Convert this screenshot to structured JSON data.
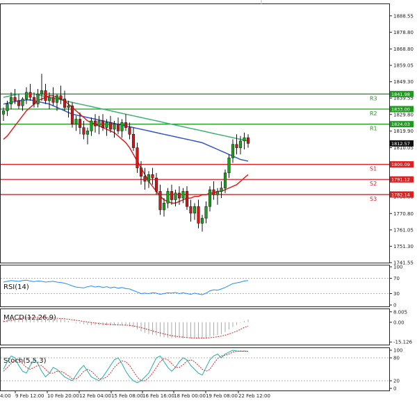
{
  "chart_data": {
    "type": "candlestick",
    "instrument": "Gold",
    "main": {
      "y_ticks": [
        1888.55,
        1878.8,
        1868.8,
        1859.05,
        1849.3,
        1839.55,
        1829.8,
        1819.9,
        1810.05,
        1800.3,
        1790.55,
        1780.8,
        1770.8,
        1761.05,
        1751.3,
        1741.55
      ],
      "ylim": [
        1741.55,
        1895.5
      ],
      "current_price": "1812.57",
      "levels": [
        {
          "name": "R3",
          "value": 1841.98,
          "label": "1841.98",
          "color": "#1f9a1f"
        },
        {
          "name": "R2",
          "value": 1833.0,
          "label": "1833.00",
          "color": "#1f9a1f"
        },
        {
          "name": "R1",
          "value": 1824.03,
          "label": "1824.03",
          "color": "#1f9a1f"
        },
        {
          "name": "S1",
          "value": 1800.09,
          "label": "1800.09",
          "color": "#e02020"
        },
        {
          "name": "S2",
          "value": 1791.12,
          "label": "1791.12",
          "color": "#e02020"
        },
        {
          "name": "S3",
          "value": 1782.14,
          "label": "1782.14",
          "color": "#e02020"
        }
      ],
      "candles": [
        [
          1830,
          1834,
          1826,
          1832
        ],
        [
          1832,
          1838,
          1829,
          1836
        ],
        [
          1836,
          1843,
          1833,
          1840
        ],
        [
          1840,
          1845,
          1836,
          1838
        ],
        [
          1838,
          1842,
          1833,
          1835
        ],
        [
          1835,
          1840,
          1832,
          1839
        ],
        [
          1839,
          1846,
          1836,
          1843
        ],
        [
          1843,
          1848,
          1838,
          1840
        ],
        [
          1840,
          1843,
          1834,
          1836
        ],
        [
          1836,
          1845,
          1834,
          1842
        ],
        [
          1842,
          1854,
          1838,
          1844
        ],
        [
          1844,
          1848,
          1836,
          1838
        ],
        [
          1838,
          1843,
          1833,
          1840
        ],
        [
          1840,
          1846,
          1835,
          1837
        ],
        [
          1837,
          1842,
          1832,
          1841
        ],
        [
          1841,
          1847,
          1836,
          1839
        ],
        [
          1839,
          1844,
          1832,
          1834
        ],
        [
          1834,
          1838,
          1828,
          1835
        ],
        [
          1835,
          1837,
          1822,
          1824
        ],
        [
          1824,
          1829,
          1820,
          1827
        ],
        [
          1827,
          1831,
          1818,
          1822
        ],
        [
          1822,
          1826,
          1815,
          1818
        ],
        [
          1818,
          1822,
          1812,
          1820
        ],
        [
          1820,
          1828,
          1817,
          1826
        ],
        [
          1826,
          1830,
          1819,
          1823
        ],
        [
          1823,
          1829,
          1818,
          1826
        ],
        [
          1826,
          1830,
          1820,
          1822
        ],
        [
          1822,
          1827,
          1817,
          1825
        ],
        [
          1825,
          1829,
          1819,
          1821
        ],
        [
          1821,
          1826,
          1816,
          1824
        ],
        [
          1824,
          1828,
          1818,
          1820
        ],
        [
          1820,
          1827,
          1816,
          1825
        ],
        [
          1825,
          1830,
          1820,
          1822
        ],
        [
          1822,
          1825,
          1815,
          1818
        ],
        [
          1818,
          1822,
          1808,
          1810
        ],
        [
          1810,
          1813,
          1795,
          1798
        ],
        [
          1798,
          1802,
          1788,
          1793
        ],
        [
          1793,
          1798,
          1785,
          1790
        ],
        [
          1790,
          1796,
          1786,
          1794
        ],
        [
          1794,
          1798,
          1788,
          1792
        ],
        [
          1792,
          1795,
          1782,
          1784
        ],
        [
          1784,
          1788,
          1770,
          1773
        ],
        [
          1773,
          1780,
          1769,
          1777
        ],
        [
          1777,
          1786,
          1774,
          1784
        ],
        [
          1784,
          1788,
          1776,
          1779
        ],
        [
          1779,
          1785,
          1775,
          1783
        ],
        [
          1783,
          1787,
          1776,
          1780
        ],
        [
          1780,
          1786,
          1777,
          1784
        ],
        [
          1784,
          1787,
          1773,
          1775
        ],
        [
          1775,
          1779,
          1766,
          1771
        ],
        [
          1771,
          1777,
          1767,
          1775
        ],
        [
          1775,
          1779,
          1762,
          1765
        ],
        [
          1765,
          1770,
          1760,
          1768
        ],
        [
          1768,
          1778,
          1765,
          1775
        ],
        [
          1775,
          1787,
          1772,
          1785
        ],
        [
          1785,
          1790,
          1779,
          1782
        ],
        [
          1782,
          1786,
          1776,
          1784
        ],
        [
          1784,
          1790,
          1780,
          1786
        ],
        [
          1786,
          1797,
          1783,
          1795
        ],
        [
          1795,
          1806,
          1792,
          1804
        ],
        [
          1804,
          1815,
          1801,
          1812
        ],
        [
          1812,
          1818,
          1806,
          1810
        ],
        [
          1810,
          1817,
          1806,
          1814
        ],
        [
          1814,
          1819,
          1809,
          1816
        ],
        [
          1816,
          1818,
          1810,
          1812.57
        ]
      ],
      "ma_red": [
        1815,
        1817,
        1820,
        1823,
        1826,
        1829,
        1832,
        1834,
        1836,
        1838,
        1839,
        1840,
        1841,
        1841,
        1840,
        1839,
        1838,
        1836,
        1834,
        1832,
        1830,
        1828,
        1826,
        1825,
        1824,
        1823,
        1822,
        1821,
        1820,
        1819,
        1817,
        1815,
        1813,
        1810,
        1806,
        1802,
        1798,
        1794,
        1790,
        1787,
        1784,
        1781,
        1779,
        1778,
        1777,
        1777,
        1778,
        1779,
        1780,
        1780,
        1781,
        1781,
        1782,
        1782,
        1783,
        1783,
        1784,
        1784,
        1785,
        1786,
        1787,
        1788,
        1790,
        1792,
        1794
      ],
      "ma_blue": [
        1836,
        1836.5,
        1837,
        1837.5,
        1838,
        1838,
        1838.5,
        1838.5,
        1838,
        1837.5,
        1837,
        1836.5,
        1836,
        1835,
        1834,
        1833,
        1832,
        1831,
        1830,
        1829.5,
        1829,
        1828.5,
        1828,
        1827.5,
        1827,
        1826.5,
        1826,
        1825.5,
        1825,
        1824.5,
        1824,
        1823.5,
        1823,
        1822.5,
        1822,
        1821.5,
        1821,
        1820.5,
        1820,
        1819.5,
        1819,
        1818.5,
        1818,
        1817.5,
        1817,
        1816.5,
        1816,
        1815.5,
        1815,
        1814.5,
        1814,
        1813.5,
        1813,
        1812,
        1811,
        1810,
        1809,
        1808,
        1807,
        1806,
        1805,
        1804,
        1803,
        1802.5,
        1802
      ],
      "ma_green": [
        1840,
        1840.5,
        1841,
        1841.5,
        1842,
        1842,
        1842,
        1842,
        1842,
        1841.5,
        1841,
        1840.5,
        1840,
        1839.5,
        1839,
        1838.5,
        1838,
        1837.5,
        1837,
        1836.5,
        1836,
        1835.5,
        1835,
        1834.5,
        1834,
        1833.5,
        1833,
        1832.5,
        1832,
        1831.5,
        1831,
        1830.5,
        1830,
        1829.5,
        1829,
        1828.5,
        1828,
        1827.5,
        1827,
        1826.5,
        1826,
        1825.5,
        1825,
        1824.5,
        1824,
        1823.5,
        1823,
        1822.5,
        1822,
        1821.5,
        1821,
        1820.5,
        1820,
        1819.5,
        1819,
        1818.5,
        1818,
        1817.5,
        1817,
        1816.5,
        1816,
        1815.5,
        1815,
        1814.5,
        1814
      ]
    },
    "x_labels": [
      "9 Feb 12:00",
      "10 Feb 20:00",
      "12 Feb 04:00",
      "15 Feb 08:00",
      "16 Feb 16:00",
      "18 Feb 00:00",
      "19 Feb 08:00",
      "22 Feb 12:00"
    ],
    "x_label_left_partial": "4:00",
    "rsi": {
      "label": "RSI(14)",
      "y_ticks": [
        "100",
        "70",
        "30",
        "0"
      ],
      "tick_values": [
        100,
        70,
        30,
        0
      ],
      "values": [
        60,
        62,
        64,
        63,
        62,
        64,
        65,
        63,
        61,
        63,
        62,
        60,
        61,
        62,
        60,
        59,
        57,
        54,
        50,
        47,
        46,
        45,
        48,
        50,
        47,
        49,
        46,
        48,
        45,
        47,
        44,
        46,
        43,
        42,
        38,
        34,
        30,
        31,
        30,
        32,
        31,
        28,
        30,
        32,
        31,
        33,
        30,
        32,
        30,
        28,
        31,
        29,
        27,
        31,
        37,
        40,
        39,
        42,
        46,
        51,
        56,
        58,
        60,
        63,
        64
      ]
    },
    "macd": {
      "label": "MACD(12,26,9)",
      "y_ticks": [
        "8.005",
        "0.00",
        "-15.126"
      ],
      "tick_values": [
        8.005,
        0,
        -15.126
      ],
      "histogram": [
        1.5,
        2.0,
        3.0,
        3.5,
        3.8,
        4.0,
        4.5,
        4.8,
        4.6,
        4.5,
        4.3,
        4.0,
        3.5,
        3.0,
        2.5,
        2.2,
        1.8,
        1.0,
        0.3,
        -0.5,
        -1.0,
        -1.5,
        -2.0,
        -2.2,
        -2.0,
        -2.3,
        -2.5,
        -2.3,
        -2.5,
        -2.3,
        -2.5,
        -2.4,
        -2.6,
        -3.0,
        -4.0,
        -5.5,
        -7.0,
        -8.0,
        -9.0,
        -9.5,
        -10.0,
        -11.0,
        -11.5,
        -11.8,
        -12.0,
        -12.0,
        -12.0,
        -12.2,
        -12.2,
        -12.4,
        -12.2,
        -12.5,
        -12.3,
        -11.8,
        -11.0,
        -10.3,
        -9.8,
        -9.0,
        -7.5,
        -5.5,
        -3.5,
        -2.0,
        -0.5,
        1.0,
        2.0
      ],
      "signal": [
        0.5,
        1.0,
        1.5,
        2.0,
        2.5,
        3.0,
        3.3,
        3.5,
        3.6,
        3.7,
        3.7,
        3.6,
        3.5,
        3.3,
        3.1,
        2.9,
        2.6,
        2.3,
        1.9,
        1.5,
        1.1,
        0.6,
        0.2,
        -0.2,
        -0.6,
        -0.9,
        -1.2,
        -1.5,
        -1.7,
        -1.9,
        -2.0,
        -2.1,
        -2.2,
        -2.4,
        -2.8,
        -3.4,
        -4.1,
        -4.9,
        -5.8,
        -6.6,
        -7.4,
        -8.2,
        -8.9,
        -9.6,
        -10.2,
        -10.7,
        -11.1,
        -11.4,
        -11.7,
        -11.9,
        -12.0,
        -12.1,
        -12.1,
        -12.0,
        -11.8,
        -11.5,
        -11.1,
        -10.6,
        -9.9,
        -9.0,
        -8.0,
        -6.8,
        -5.4,
        -4.0,
        -2.8
      ]
    },
    "stoch": {
      "label": "Stoch(5,5,3)",
      "y_ticks": [
        "100",
        "80",
        "20",
        "0"
      ],
      "tick_values": [
        100,
        80,
        20,
        0
      ],
      "k": [
        50,
        70,
        85,
        80,
        60,
        45,
        40,
        60,
        75,
        65,
        45,
        30,
        40,
        55,
        50,
        40,
        30,
        25,
        20,
        35,
        50,
        60,
        45,
        30,
        25,
        20,
        30,
        45,
        60,
        75,
        80,
        65,
        45,
        30,
        20,
        15,
        20,
        30,
        40,
        60,
        80,
        85,
        70,
        55,
        45,
        55,
        70,
        80,
        75,
        60,
        50,
        40,
        35,
        55,
        75,
        85,
        90,
        80,
        90,
        95,
        100,
        98,
        97,
        98,
        97
      ],
      "d": [
        45,
        55,
        65,
        75,
        75,
        65,
        55,
        50,
        55,
        60,
        60,
        50,
        40,
        40,
        45,
        45,
        40,
        33,
        25,
        25,
        33,
        45,
        50,
        45,
        35,
        25,
        25,
        30,
        40,
        55,
        65,
        72,
        70,
        60,
        45,
        30,
        20,
        20,
        28,
        40,
        55,
        70,
        78,
        75,
        65,
        55,
        55,
        62,
        72,
        75,
        70,
        60,
        50,
        45,
        50,
        65,
        78,
        85,
        87,
        90,
        95,
        97,
        98,
        97,
        97
      ]
    }
  }
}
